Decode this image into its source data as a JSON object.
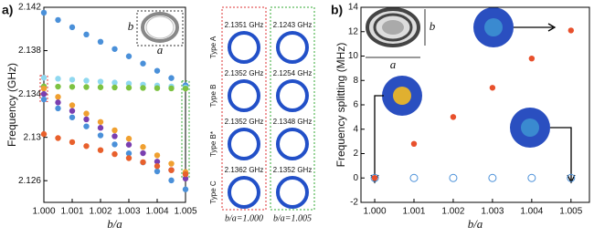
{
  "chart_data": [
    {
      "type": "scatter",
      "panel_label": "a)",
      "y_label": "Frequency (GHz)",
      "x_label": "b/a",
      "inset_labels": [
        "a",
        "b"
      ],
      "x": [
        1,
        1.0005,
        1.001,
        1.0015,
        1.002,
        1.0025,
        1.003,
        1.0035,
        1.004,
        1.0045,
        1.005
      ],
      "xlim": [
        1,
        1.005
      ],
      "xticks": [
        {
          "value": 1,
          "label": "1.000"
        },
        1.001,
        1.002,
        1.003,
        1.004,
        1.005
      ],
      "ylim": [
        2.124,
        2.142
      ],
      "yticks": [
        2.126,
        2.13,
        2.134,
        2.138,
        2.142
      ],
      "series": [
        {
          "color": "#4a90d9",
          "values": [
            2.1415,
            2.14083,
            2.14016,
            2.13949,
            2.13882,
            2.13815,
            2.13748,
            2.13681,
            2.13614,
            2.13547,
            2.1348
          ]
        },
        {
          "color": "#8fd8f0",
          "values": [
            2.1355,
            2.13541,
            2.13532,
            2.13523,
            2.13514,
            2.13505,
            2.13496,
            2.13487,
            2.13478,
            2.13469,
            2.1346
          ]
        },
        {
          "color": "#7dc242",
          "values": [
            2.1347,
            2.13468,
            2.13466,
            2.13464,
            2.13462,
            2.1346,
            2.13458,
            2.13456,
            2.13454,
            2.13452,
            2.1345
          ]
        },
        {
          "color": "#f0a030",
          "values": [
            2.1345,
            2.13373,
            2.13296,
            2.13219,
            2.13142,
            2.13065,
            2.12988,
            2.12911,
            2.12834,
            2.12757,
            2.1268
          ]
        },
        {
          "color": "#7a3fb0",
          "values": [
            2.134,
            2.13322,
            2.13244,
            2.13166,
            2.13088,
            2.1301,
            2.12932,
            2.12854,
            2.12776,
            2.12698,
            2.1262
          ]
        },
        {
          "color": "#4a90d9",
          "values": [
            2.1335,
            2.13267,
            2.13184,
            2.13101,
            2.13018,
            2.12935,
            2.12852,
            2.12769,
            2.12686,
            2.12603,
            2.1252
          ]
        },
        {
          "color": "#e8602c",
          "values": [
            2.1303,
            2.12993,
            2.12956,
            2.12919,
            2.12882,
            2.12845,
            2.12808,
            2.12771,
            2.12734,
            2.12697,
            2.1266
          ]
        }
      ]
    },
    {
      "type": "scatter",
      "panel_label": "b)",
      "y_label": "Frequency splitting (MHz)",
      "x_label": "b/a",
      "inset_labels": [
        "a",
        "b"
      ],
      "x": [
        1,
        1.001,
        1.002,
        1.003,
        1.004,
        1.005
      ],
      "xlim": [
        0.99965,
        1.00547
      ],
      "xticks": [
        {
          "value": 1,
          "label": "1.000"
        },
        1.001,
        1.002,
        1.003,
        1.004,
        1.005
      ],
      "ylim": [
        -2,
        14
      ],
      "yticks": [
        -2,
        0,
        2,
        4,
        6,
        8,
        10,
        12,
        14
      ],
      "series": [
        {
          "color": "#4a90d9",
          "filled": false,
          "values": [
            0,
            0,
            0,
            0,
            0,
            0
          ]
        },
        {
          "color": "#e8502c",
          "filled": true,
          "values": [
            0,
            2.8,
            5,
            7.4,
            9.8,
            12.1
          ]
        }
      ]
    }
  ],
  "mode_table": {
    "types": [
      "Type A",
      "Type B",
      "Type B*",
      "Type C"
    ],
    "columns": [
      {
        "freqs": [
          "2.1351 GHz",
          "2.1352 GHz",
          "2.1352 GHz",
          "2.1362 GHz"
        ],
        "footer": "b/a=1.000"
      },
      {
        "freqs": [
          "2.1243 GHz",
          "2.1254 GHz",
          "2.1348 GHz",
          "2.1352 GHz"
        ],
        "footer": "b/a=1.005"
      }
    ]
  }
}
